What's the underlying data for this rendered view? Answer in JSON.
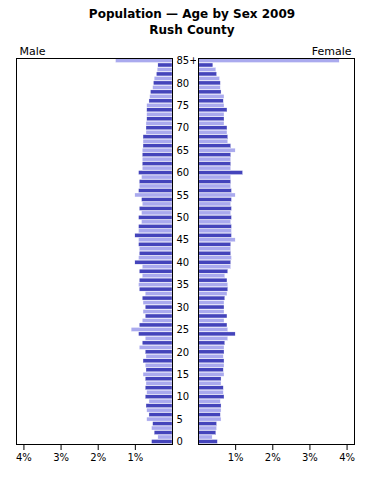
{
  "chart_data": {
    "type": "bar",
    "orientation": "horizontal",
    "title": "Population — Age by Sex 2009",
    "subtitle": "Rush County",
    "categories": [
      "0",
      null,
      null,
      null,
      null,
      "5",
      null,
      null,
      null,
      null,
      "10",
      null,
      null,
      null,
      null,
      "15",
      null,
      null,
      null,
      null,
      "20",
      null,
      null,
      null,
      null,
      "25",
      null,
      null,
      null,
      null,
      "30",
      null,
      null,
      null,
      null,
      "35",
      null,
      null,
      null,
      null,
      "40",
      null,
      null,
      null,
      null,
      "45",
      null,
      null,
      null,
      null,
      "50",
      null,
      null,
      null,
      null,
      "55",
      null,
      null,
      null,
      null,
      "60",
      null,
      null,
      null,
      null,
      "65",
      null,
      null,
      null,
      null,
      "70",
      null,
      null,
      null,
      null,
      "75",
      null,
      null,
      null,
      null,
      "80",
      null,
      null,
      null,
      null,
      "85+"
    ],
    "series": [
      {
        "name": "Male",
        "values": [
          0.55,
          0.38,
          0.48,
          0.55,
          0.52,
          0.68,
          0.62,
          0.68,
          0.7,
          0.62,
          0.72,
          0.68,
          0.72,
          0.7,
          0.72,
          0.78,
          0.7,
          0.72,
          0.78,
          0.7,
          0.72,
          0.88,
          0.8,
          0.72,
          0.9,
          1.1,
          0.88,
          0.8,
          0.72,
          0.78,
          0.72,
          0.78,
          0.8,
          0.72,
          0.88,
          0.9,
          0.88,
          0.8,
          0.88,
          0.8,
          1.0,
          0.9,
          0.88,
          0.88,
          0.9,
          0.9,
          1.0,
          0.9,
          0.9,
          0.82,
          0.9,
          0.82,
          0.88,
          0.8,
          0.82,
          1.0,
          0.9,
          0.88,
          0.88,
          0.82,
          0.9,
          0.8,
          0.8,
          0.8,
          0.8,
          0.8,
          0.78,
          0.78,
          0.78,
          0.7,
          0.7,
          0.7,
          0.68,
          0.68,
          0.68,
          0.68,
          0.62,
          0.6,
          0.58,
          0.52,
          0.5,
          0.48,
          0.42,
          0.4,
          0.38,
          1.52
        ]
      },
      {
        "name": "Female",
        "values": [
          0.52,
          0.38,
          0.48,
          0.5,
          0.5,
          0.62,
          0.6,
          0.62,
          0.62,
          0.6,
          0.7,
          0.68,
          0.68,
          0.62,
          0.62,
          0.7,
          0.68,
          0.7,
          0.7,
          0.68,
          0.7,
          0.7,
          0.72,
          0.8,
          1.0,
          0.8,
          0.78,
          0.7,
          0.78,
          0.7,
          0.7,
          0.7,
          0.72,
          0.78,
          0.8,
          0.8,
          0.78,
          0.72,
          0.8,
          0.88,
          0.88,
          0.9,
          0.88,
          0.88,
          0.88,
          1.0,
          0.9,
          0.9,
          0.9,
          0.88,
          0.9,
          0.88,
          0.9,
          0.88,
          0.9,
          1.0,
          0.9,
          0.88,
          0.88,
          0.88,
          1.2,
          0.88,
          0.88,
          0.88,
          0.88,
          1.0,
          0.88,
          0.8,
          0.8,
          0.78,
          0.78,
          0.7,
          0.7,
          0.7,
          0.78,
          0.7,
          0.68,
          0.7,
          0.62,
          0.6,
          0.6,
          0.58,
          0.5,
          0.48,
          0.4,
          3.8
        ]
      }
    ],
    "colors": [
      "#4444bb",
      "#aaaaee",
      "#4444bb",
      "#aaaaee",
      "#4444bb",
      "#aaaaee",
      "#4444bb",
      "#aaaaee",
      "#4444bb",
      "#aaaaee",
      "#4444bb",
      "#aaaaee",
      "#4444bb",
      "#aaaaee",
      "#4444bb",
      "#aaaaee",
      "#4444bb",
      "#aaaaee",
      "#4444bb",
      "#aaaaee",
      "#4444bb",
      "#aaaaee",
      "#4444bb",
      "#aaaaee",
      "#4444bb",
      "#aaaaee",
      "#4444bb",
      "#aaaaee",
      "#4444bb",
      "#aaaaee",
      "#4444bb",
      "#aaaaee",
      "#4444bb",
      "#aaaaee",
      "#4444bb",
      "#aaaaee",
      "#4444bb",
      "#aaaaee",
      "#4444bb",
      "#aaaaee",
      "#4444bb",
      "#aaaaee",
      "#4444bb",
      "#aaaaee",
      "#4444bb",
      "#aaaaee",
      "#4444bb",
      "#aaaaee",
      "#4444bb",
      "#aaaaee",
      "#4444bb",
      "#aaaaee",
      "#4444bb",
      "#aaaaee",
      "#4444bb",
      "#aaaaee",
      "#4444bb",
      "#aaaaee",
      "#4444bb",
      "#aaaaee",
      "#4444bb",
      "#aaaaee",
      "#4444bb",
      "#aaaaee",
      "#4444bb",
      "#aaaaee",
      "#4444bb",
      "#aaaaee",
      "#4444bb",
      "#aaaaee",
      "#4444bb",
      "#aaaaee",
      "#4444bb",
      "#aaaaee",
      "#4444bb",
      "#aaaaee",
      "#4444bb",
      "#aaaaee",
      "#4444bb",
      "#aaaaee",
      "#4444bb",
      "#aaaaee",
      "#4444bb",
      "#aaaaee",
      "#4444bb",
      "#aaaaee"
    ],
    "xlim": [
      0,
      4.2
    ],
    "xticks": [
      {
        "value": 1,
        "label": "1%"
      },
      {
        "value": 2,
        "label": "2%"
      },
      {
        "value": 3,
        "label": "3%"
      },
      {
        "value": 4,
        "label": "4%"
      }
    ],
    "grid": false
  }
}
